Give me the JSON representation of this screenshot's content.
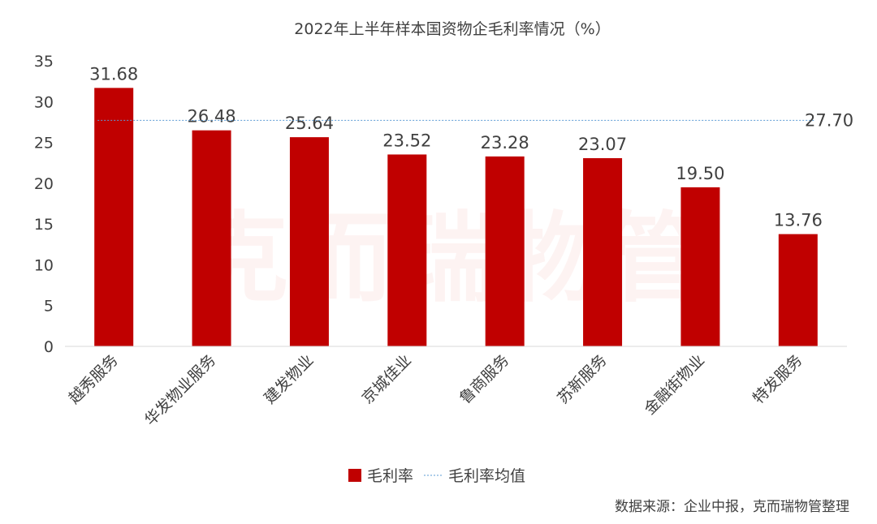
{
  "chart_data": {
    "type": "bar",
    "title": "2022年上半年样本国资物企毛利率情况（%）",
    "categories": [
      "越秀服务",
      "华发物业服务",
      "建发物业",
      "京城佳业",
      "鲁商服务",
      "苏新服务",
      "金融街物业",
      "特发服务"
    ],
    "series": [
      {
        "name": "毛利率",
        "values": [
          31.68,
          26.48,
          25.64,
          23.52,
          23.28,
          23.07,
          19.5,
          13.76
        ],
        "color": "#c00000"
      }
    ],
    "average": {
      "name": "毛利率均值",
      "value": 27.7,
      "label": "27.70",
      "color": "#5b9bd5"
    },
    "data_labels": [
      "31.68",
      "26.48",
      "25.64",
      "23.52",
      "23.28",
      "23.07",
      "19.50",
      "13.76"
    ],
    "ylim": [
      0,
      35
    ],
    "yticks": [
      0,
      5,
      10,
      15,
      20,
      25,
      30,
      35
    ],
    "grid": false,
    "legend_position": "bottom"
  },
  "source": "数据来源：企业中报，克而瑞物管整理",
  "watermark": "克而瑞物管"
}
